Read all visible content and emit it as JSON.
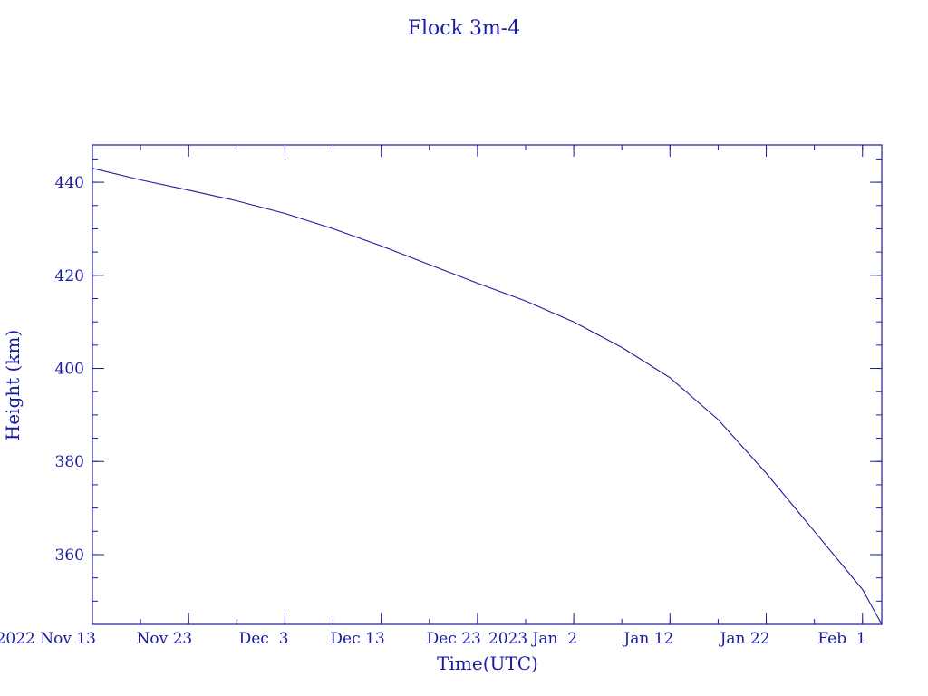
{
  "chart_data": {
    "type": "line",
    "title": "Flock 3m-4",
    "xlabel": "Time(UTC)",
    "ylabel": "Height (km)",
    "colors": {
      "axis": "#1a1aa0",
      "line": "#1a1aa0",
      "background": "#ffffff"
    },
    "grid": false,
    "x_range": [
      "2022-11-13",
      "2023-02-03"
    ],
    "ylim": [
      345,
      448
    ],
    "y_ticks": [
      {
        "value": 360,
        "label": "360"
      },
      {
        "value": 380,
        "label": "380"
      },
      {
        "value": 400,
        "label": "400"
      },
      {
        "value": 420,
        "label": "420"
      },
      {
        "value": 440,
        "label": "440"
      }
    ],
    "y_minor_step": 5,
    "x_ticks": [
      {
        "date": "2022-11-13",
        "label": "2022 Nov 13"
      },
      {
        "date": "2022-11-23",
        "label": "Nov 23"
      },
      {
        "date": "2022-12-03",
        "label": "Dec  3"
      },
      {
        "date": "2022-12-13",
        "label": "Dec 13"
      },
      {
        "date": "2022-12-23",
        "label": "Dec 23"
      },
      {
        "date": "2023-01-02",
        "label": "2023 Jan  2"
      },
      {
        "date": "2023-01-12",
        "label": "Jan 12"
      },
      {
        "date": "2023-01-22",
        "label": "Jan 22"
      },
      {
        "date": "2023-02-01",
        "label": "Feb  1"
      }
    ],
    "x_minor_step_days": 5,
    "series": [
      {
        "points": [
          {
            "x": "2022-11-13",
            "y": 443.0
          },
          {
            "x": "2022-11-18",
            "y": 440.5
          },
          {
            "x": "2022-11-23",
            "y": 438.3
          },
          {
            "x": "2022-11-28",
            "y": 436.0
          },
          {
            "x": "2022-12-03",
            "y": 433.3
          },
          {
            "x": "2022-12-08",
            "y": 430.0
          },
          {
            "x": "2022-12-13",
            "y": 426.3
          },
          {
            "x": "2022-12-18",
            "y": 422.3
          },
          {
            "x": "2022-12-23",
            "y": 418.3
          },
          {
            "x": "2022-12-28",
            "y": 414.5
          },
          {
            "x": "2023-01-02",
            "y": 410.0
          },
          {
            "x": "2023-01-07",
            "y": 404.5
          },
          {
            "x": "2023-01-12",
            "y": 398.0
          },
          {
            "x": "2023-01-17",
            "y": 389.0
          },
          {
            "x": "2023-01-22",
            "y": 377.5
          },
          {
            "x": "2023-01-27",
            "y": 365.0
          },
          {
            "x": "2023-02-01",
            "y": 352.5
          },
          {
            "x": "2023-02-03",
            "y": 345.0
          }
        ]
      }
    ]
  }
}
